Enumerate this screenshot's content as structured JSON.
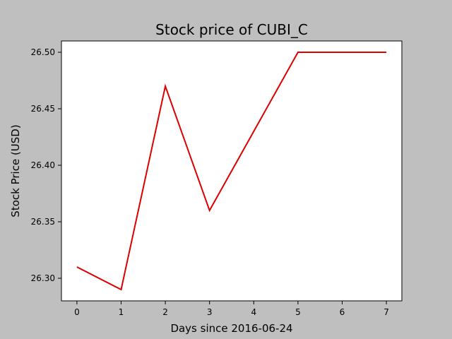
{
  "chart_data": {
    "type": "line",
    "title": "Stock price of CUBI_C",
    "xlabel": "Days since 2016-06-24",
    "ylabel": "Stock Price (USD)",
    "x": [
      0,
      1,
      2,
      3,
      4,
      5,
      6,
      7
    ],
    "x_ticks": [
      "0",
      "1",
      "2",
      "3",
      "4",
      "5",
      "6",
      "7"
    ],
    "y_ticks": [
      "26.30",
      "26.35",
      "26.40",
      "26.45",
      "26.50"
    ],
    "xlim": [
      -0.35,
      7.35
    ],
    "ylim": [
      26.28,
      26.51
    ],
    "grid": false,
    "series": [
      {
        "values": [
          26.31,
          26.29,
          26.47,
          26.36,
          26.43,
          26.5,
          26.5,
          26.5
        ],
        "color": "#dd0000"
      }
    ]
  },
  "colors": {
    "background": "#bfbfbf",
    "plot_background": "#ffffff",
    "line": "#dd0000"
  }
}
